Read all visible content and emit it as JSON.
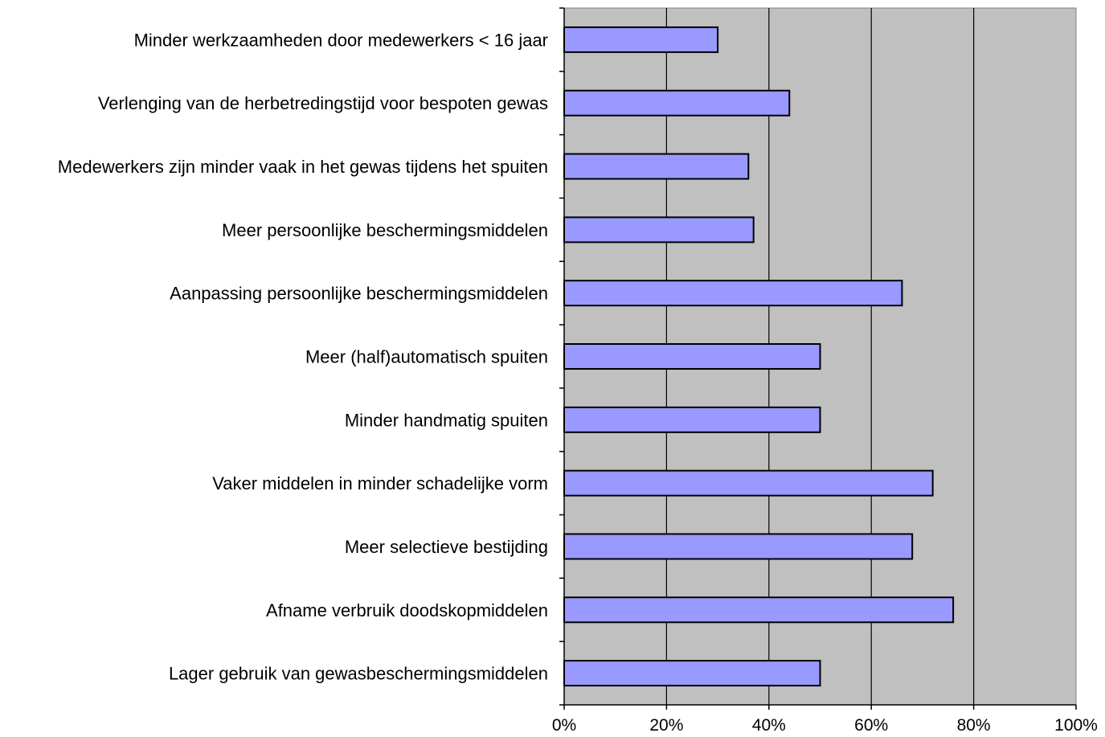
{
  "chart_data": {
    "type": "bar",
    "orientation": "horizontal",
    "categories": [
      "Minder werkzaamheden door medewerkers < 16 jaar",
      "Verlenging van de herbetredingstijd voor bespoten gewas",
      "Medewerkers zijn minder vaak in het gewas tijdens het spuiten",
      "Meer persoonlijke beschermingsmiddelen",
      "Aanpassing persoonlijke beschermingsmiddelen",
      "Meer (half)automatisch spuiten",
      "Minder handmatig spuiten",
      "Vaker middelen in minder schadelijke vorm",
      "Meer selectieve bestijding",
      "Afname verbruik doodskopmiddelen",
      "Lager gebruik van gewasbeschermingsmiddelen"
    ],
    "values": [
      30,
      44,
      36,
      37,
      66,
      50,
      50,
      72,
      68,
      76,
      50
    ],
    "xlim": [
      0,
      100
    ],
    "xticks": [
      "0%",
      "20%",
      "40%",
      "60%",
      "80%",
      "100%"
    ],
    "title": "",
    "xlabel": "",
    "ylabel": "",
    "grid": true,
    "colors": {
      "bar_fill": "#9999ff",
      "bar_stroke": "#000000",
      "plot_background": "#c0c0c0"
    }
  }
}
